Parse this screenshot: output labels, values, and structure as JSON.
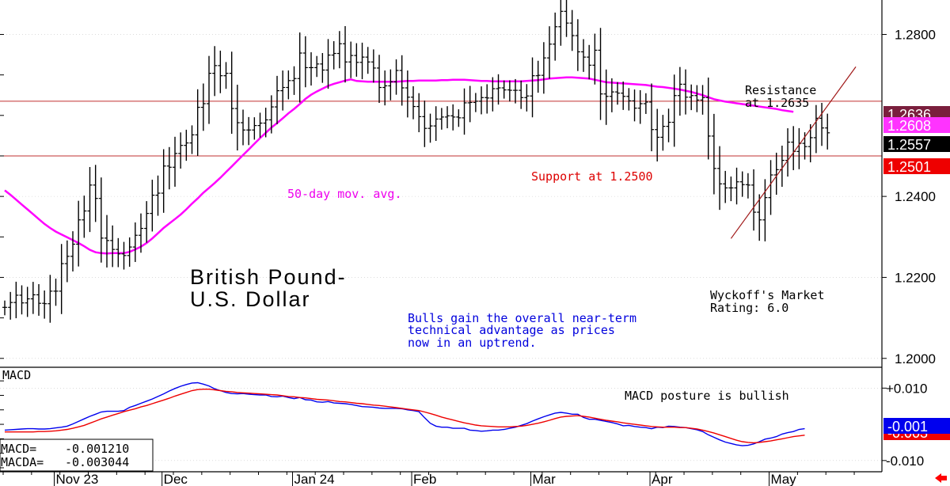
{
  "colors": {
    "price_bars": "#000000",
    "moving_average": "#ff00ff",
    "resistance_line": "#c03030",
    "support_line": "#c03030",
    "trendline": "#a01818",
    "macd": "#0000ee",
    "macda": "#ee0000",
    "resistance_tag": "#7a1f3d",
    "ma_tag": "#ff33ff",
    "last_price_tag": "#000000",
    "support_tag": "#ee0000",
    "macd_tag": "#0000ee",
    "macda_tag": "#ee0000",
    "annotation_blue": "#0000dd",
    "annotation_red": "#dd0000",
    "annotation_magenta": "#ee00ee",
    "grid": "#c8c8c8",
    "scroll_arrow": "#ff0000"
  },
  "chart_data": [
    {
      "type": "ohlc",
      "title": "British Pound-\nU.S. Dollar",
      "title_lines": [
        "British Pound-",
        "U.S. Dollar"
      ],
      "y_ticks": [
        "1.2000",
        "1.2200",
        "1.2400",
        "1.2800"
      ],
      "y_tick_values": [
        1.2,
        1.22,
        1.24,
        1.28
      ],
      "ylim": [
        1.198,
        1.2885
      ],
      "x_ticks": [
        "Nov 23",
        "Dec",
        "Jan 24",
        "Feb",
        "Mar",
        "Apr",
        "May"
      ],
      "x_tick_bar_index": [
        9,
        28,
        51,
        72,
        93,
        114,
        135
      ],
      "grid": true,
      "price_tags": [
        {
          "label": "1.2636",
          "value": 1.2636,
          "kind": "resistance"
        },
        {
          "label": "1.2608",
          "value": 1.2608,
          "kind": "moving_average"
        },
        {
          "label": "1.2557",
          "value": 1.2557,
          "kind": "last_price"
        },
        {
          "label": "1.2501",
          "value": 1.2501,
          "kind": "support"
        }
      ],
      "horizontal_lines": [
        {
          "name": "resistance",
          "value": 1.2635
        },
        {
          "name": "support",
          "value": 1.25
        }
      ],
      "trendline": {
        "from": {
          "bar": 128,
          "value": 1.2296
        },
        "to": {
          "bar": 150,
          "value": 1.272
        }
      },
      "annotations": {
        "resistance": [
          "Resistance",
          "at 1.2635"
        ],
        "support": "Support at 1.2500",
        "moving_average": "50-day mov. avg.",
        "commentary": [
          "Bulls gain the overall near-term",
          "technical advantage as prices",
          "now in an uptrend."
        ],
        "rating": [
          "Wyckoff's Market",
          "Rating: 6.0"
        ]
      },
      "moving_average": [
        1.2415,
        1.2404,
        1.2392,
        1.238,
        1.2368,
        1.2356,
        1.2344,
        1.2332,
        1.2322,
        1.2313,
        1.2306,
        1.2299,
        1.2292,
        1.2285,
        1.2277,
        1.2268,
        1.2262,
        1.226,
        1.2259,
        1.226,
        1.226,
        1.226,
        1.2263,
        1.2269,
        1.2276,
        1.2285,
        1.2296,
        1.2309,
        1.2322,
        1.2333,
        1.2344,
        1.2355,
        1.2368,
        1.2382,
        1.2395,
        1.2409,
        1.2421,
        1.2433,
        1.2446,
        1.246,
        1.2474,
        1.2488,
        1.2502,
        1.2516,
        1.253,
        1.2544,
        1.2557,
        1.257,
        1.2581,
        1.2593,
        1.2605,
        1.2616,
        1.2628,
        1.2641,
        1.2651,
        1.2659,
        1.2666,
        1.2673,
        1.2678,
        1.2682,
        1.2686,
        1.2689,
        1.2685,
        1.2684,
        1.2683,
        1.2683,
        1.2683,
        1.2683,
        1.2683,
        1.2683,
        1.2684,
        1.2685,
        1.2685,
        1.2686,
        1.2686,
        1.2686,
        1.2686,
        1.2687,
        1.2687,
        1.2688,
        1.2688,
        1.2688,
        1.2687,
        1.2686,
        1.2685,
        1.2685,
        1.2684,
        1.2684,
        1.2684,
        1.2684,
        1.2684,
        1.2684,
        1.2685,
        1.2686,
        1.2687,
        1.2689,
        1.2691,
        1.2692,
        1.2693,
        1.2694,
        1.2694,
        1.2693,
        1.2692,
        1.2691,
        1.2688,
        1.2685,
        1.2682,
        1.2681,
        1.268,
        1.2679,
        1.2678,
        1.2677,
        1.2676,
        1.2675,
        1.2673,
        1.2671,
        1.267,
        1.2668,
        1.2666,
        1.2664,
        1.2661,
        1.2658,
        1.2654,
        1.265,
        1.2645,
        1.264,
        1.2637,
        1.2634,
        1.2632,
        1.263,
        1.2628,
        1.2626,
        1.2624,
        1.2622,
        1.262,
        1.2618,
        1.2616,
        1.2613,
        1.2611,
        1.2609
      ],
      "closes": [
        1.2126,
        1.2138,
        1.2156,
        1.2137,
        1.2147,
        1.2157,
        1.2136,
        1.2135,
        1.2166,
        1.2166,
        1.2234,
        1.2252,
        1.2282,
        1.2342,
        1.2364,
        1.2428,
        1.2395,
        1.2297,
        1.2291,
        1.2269,
        1.2258,
        1.2254,
        1.2275,
        1.2304,
        1.2321,
        1.2358,
        1.2403,
        1.2408,
        1.2475,
        1.2472,
        1.2506,
        1.2526,
        1.2532,
        1.2552,
        1.262,
        1.2629,
        1.2704,
        1.2723,
        1.2698,
        1.2704,
        1.2617,
        1.2582,
        1.2564,
        1.2564,
        1.2575,
        1.2581,
        1.2589,
        1.2621,
        1.2661,
        1.2669,
        1.2686,
        1.2691,
        1.2754,
        1.2718,
        1.2718,
        1.2727,
        1.2712,
        1.2749,
        1.2753,
        1.2777,
        1.2732,
        1.2748,
        1.2731,
        1.2744,
        1.2732,
        1.2717,
        1.2669,
        1.2673,
        1.2683,
        1.2711,
        1.2668,
        1.2645,
        1.2622,
        1.2597,
        1.2568,
        1.2574,
        1.2591,
        1.2596,
        1.2599,
        1.2596,
        1.2594,
        1.2631,
        1.2632,
        1.2635,
        1.2644,
        1.2643,
        1.2666,
        1.2668,
        1.2663,
        1.2662,
        1.2662,
        1.2644,
        1.2648,
        1.2698,
        1.2699,
        1.2742,
        1.2776,
        1.2819,
        1.2857,
        1.2828,
        1.2797,
        1.2757,
        1.2744,
        1.2724,
        1.2761,
        1.2653,
        1.2647,
        1.2658,
        1.2655,
        1.2647,
        1.2636,
        1.2618,
        1.2629,
        1.2633,
        1.2565,
        1.2546,
        1.2573,
        1.2583,
        1.2649,
        1.2677,
        1.2645,
        1.2649,
        1.2638,
        1.2644,
        1.2549,
        1.2469,
        1.2431,
        1.2421,
        1.2421,
        1.2436,
        1.2429,
        1.2428,
        1.2361,
        1.2342,
        1.2397,
        1.2453,
        1.2466,
        1.2489,
        1.2534,
        1.2511,
        1.2531,
        1.2523,
        1.2545,
        1.2593,
        1.2569,
        1.2557
      ]
    },
    {
      "type": "line",
      "title": "MACD",
      "y_ticks": [
        "+0.010",
        "-0.010"
      ],
      "y_tick_values": [
        0.01,
        -0.01
      ],
      "ylim": [
        -0.0131,
        0.0151
      ],
      "readout": {
        "macd_label": "MACD=",
        "macd_value": "-0.001210",
        "macda_label": "MACDA=",
        "macda_value": "-0.003044"
      },
      "annotation": "MACD posture is bullish",
      "tags": [
        {
          "label": "-0.001",
          "value": -0.00121,
          "series": "MACD"
        },
        {
          "label": "-0.003",
          "value": -0.00304,
          "series": "MACDA"
        }
      ],
      "series": [
        {
          "name": "MACD",
          "values": [
            -0.0016,
            -0.0015,
            -0.0014,
            -0.0013,
            -0.0012,
            -0.0012,
            -0.0013,
            -0.0013,
            -0.0012,
            -0.001,
            -0.0008,
            -0.0005,
            0.0001,
            0.0008,
            0.0015,
            0.0022,
            0.0028,
            0.0034,
            0.0036,
            0.0036,
            0.0036,
            0.0038,
            0.0047,
            0.0052,
            0.0058,
            0.0064,
            0.007,
            0.0077,
            0.0084,
            0.0092,
            0.0099,
            0.0105,
            0.011,
            0.0114,
            0.0115,
            0.0111,
            0.0106,
            0.0098,
            0.0093,
            0.0088,
            0.0085,
            0.0084,
            0.0085,
            0.0083,
            0.0082,
            0.0081,
            0.0081,
            0.0077,
            0.0076,
            0.0078,
            0.0074,
            0.0071,
            0.0074,
            0.0068,
            0.0067,
            0.0062,
            0.0061,
            0.0063,
            0.0059,
            0.0058,
            0.0057,
            0.0055,
            0.0052,
            0.0049,
            0.0048,
            0.0047,
            0.0045,
            0.0044,
            0.0044,
            0.0044,
            0.0043,
            0.004,
            0.0038,
            0.0035,
            0.0018,
            0.0003,
            -0.0005,
            -0.0008,
            -0.0008,
            -0.0011,
            -0.0011,
            -0.0011,
            -0.0016,
            -0.0017,
            -0.0019,
            -0.0018,
            -0.0016,
            -0.0016,
            -0.0014,
            -0.0011,
            -0.0008,
            -0.0003,
            0.0002,
            0.0009,
            0.0015,
            0.0021,
            0.0026,
            0.0031,
            0.0033,
            0.0031,
            0.0028,
            0.0028,
            0.0019,
            0.0014,
            0.0014,
            0.0011,
            0.0008,
            0.0005,
            0.0001,
            -0.0004,
            -0.0003,
            -0.0006,
            -0.0008,
            -0.0009,
            -0.0012,
            -0.0008,
            -0.0009,
            -0.0005,
            -0.0006,
            -0.0008,
            -0.0009,
            -0.0012,
            -0.0015,
            -0.002,
            -0.0029,
            -0.0036,
            -0.0043,
            -0.0049,
            -0.0053,
            -0.0057,
            -0.0059,
            -0.0058,
            -0.0054,
            -0.0048,
            -0.0041,
            -0.0038,
            -0.0034,
            -0.0027,
            -0.0023,
            -0.002,
            -0.0014,
            -0.0012
          ]
        },
        {
          "name": "MACDA",
          "values": [
            -0.0021,
            -0.0021,
            -0.0021,
            -0.0021,
            -0.0021,
            -0.0021,
            -0.002,
            -0.002,
            -0.0019,
            -0.0018,
            -0.0016,
            -0.0014,
            -0.0011,
            -0.0007,
            -0.0003,
            0.0003,
            0.0009,
            0.0015,
            0.002,
            0.0025,
            0.003,
            0.0035,
            0.0039,
            0.0043,
            0.0048,
            0.0052,
            0.0057,
            0.0062,
            0.0067,
            0.0072,
            0.0078,
            0.0083,
            0.0088,
            0.0093,
            0.0096,
            0.0097,
            0.0097,
            0.0095,
            0.0093,
            0.0091,
            0.009,
            0.0088,
            0.0087,
            0.0086,
            0.0085,
            0.0084,
            0.0083,
            0.0082,
            0.0081,
            0.0079,
            0.0077,
            0.0076,
            0.0074,
            0.0073,
            0.0071,
            0.0069,
            0.0068,
            0.0067,
            0.0065,
            0.0063,
            0.0062,
            0.006,
            0.0058,
            0.0057,
            0.0055,
            0.0053,
            0.0052,
            0.005,
            0.0048,
            0.0046,
            0.0044,
            0.0042,
            0.004,
            0.0038,
            0.0034,
            0.003,
            0.0025,
            0.002,
            0.0016,
            0.0012,
            0.0008,
            0.0004,
            0.0001,
            -0.0002,
            -0.0004,
            -0.0005,
            -0.0006,
            -0.0007,
            -0.0007,
            -0.0007,
            -0.0006,
            -0.0005,
            -0.0003,
            0.0,
            0.0003,
            0.0007,
            0.0011,
            0.0016,
            0.002,
            0.0022,
            0.0023,
            0.0024,
            0.0022,
            0.002,
            0.0017,
            0.0014,
            0.0011,
            0.0009,
            0.0007,
            0.0004,
            0.0002,
            0.0,
            -0.0002,
            -0.0004,
            -0.0006,
            -0.0007,
            -0.0008,
            -0.0008,
            -0.0008,
            -0.0009,
            -0.0009,
            -0.0011,
            -0.0013,
            -0.0016,
            -0.002,
            -0.0024,
            -0.0029,
            -0.0034,
            -0.0039,
            -0.0044,
            -0.0048,
            -0.005,
            -0.0051,
            -0.005,
            -0.0048,
            -0.0046,
            -0.0043,
            -0.004,
            -0.0037,
            -0.0034,
            -0.0032,
            -0.003
          ]
        }
      ]
    }
  ]
}
